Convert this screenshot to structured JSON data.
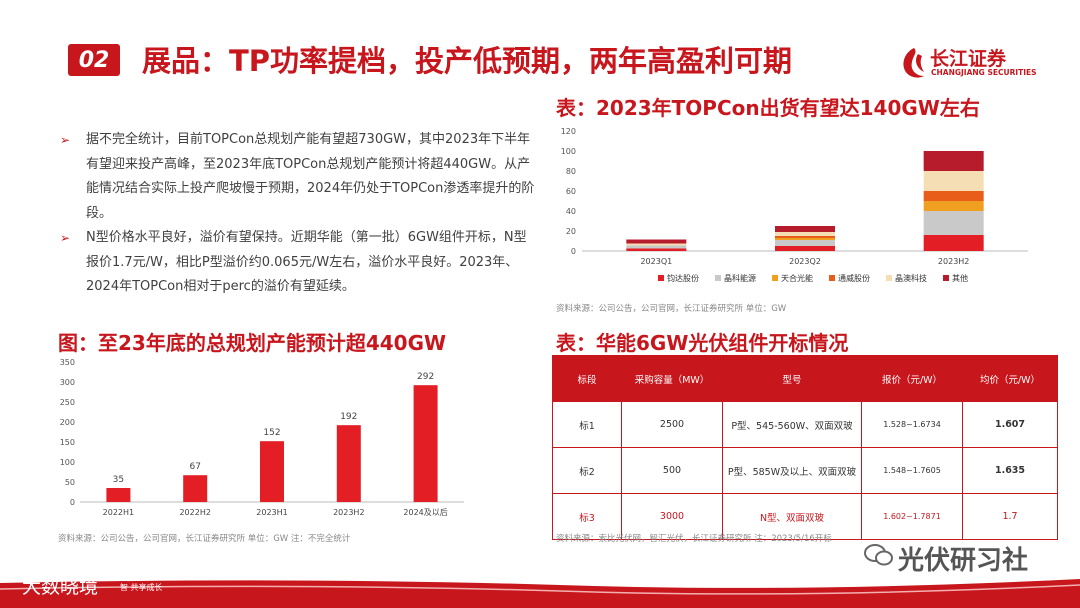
{
  "header": {
    "badge": "02",
    "title": "展品：TP功率提档，投产低预期，两年高盈利可期",
    "logo_cn": "长江证券",
    "logo_en": "CHANGJIANG SECURITIES"
  },
  "bullets": [
    "据不完全统计，目前TOPCon总规划产能有望超730GW，其中2023年下半年有望迎来投产高峰，至2023年底TOPCon总规划产能预计将超440GW。从产能情况结合实际上投产爬坡慢于预期，2024年仍处于TOPCon渗透率提升的阶段。",
    "N型价格水平良好，溢价有望保持。近期华能（第一批）6GW组件开标，N型报价1.7元/W，相比P型溢价约0.065元/W左右，溢价水平良好。2023年、2024年TOPCon相对于perc的溢价有望延续。"
  ],
  "left_chart": {
    "heading": "图：至23年底的总规划产能预计超440GW",
    "source": "资料来源：公司公告，公司官网，长江证券研究所  单位：GW  注：不完全统计",
    "chart_data": {
      "type": "bar",
      "categories": [
        "2022H1",
        "2022H2",
        "2023H1",
        "2023H2",
        "2024及以后"
      ],
      "values": [
        35,
        67,
        152,
        192,
        292
      ],
      "ylim": [
        0,
        350
      ],
      "yticks": [
        0,
        50,
        100,
        150,
        200,
        250,
        300,
        350
      ],
      "color": "#e31e24"
    }
  },
  "right_chart": {
    "heading": "表：2023年TOPCon出货有望达140GW左右",
    "source": "资料来源：公司公告，公司官网，长江证券研究所  单位：GW",
    "chart_data": {
      "type": "bar",
      "stacked": true,
      "categories": [
        "2023Q1",
        "2023Q2",
        "2023H2"
      ],
      "ylim": [
        0,
        120
      ],
      "yticks": [
        0,
        20,
        40,
        60,
        80,
        100,
        120
      ],
      "series": [
        {
          "name": "钧达股份",
          "color": "#e31e24",
          "values": [
            2.5,
            5,
            16
          ]
        },
        {
          "name": "晶科能源",
          "color": "#c9c9c9",
          "values": [
            3,
            6,
            24
          ]
        },
        {
          "name": "天合光能",
          "color": "#f0a020",
          "values": [
            0,
            2,
            10
          ]
        },
        {
          "name": "通威股份",
          "color": "#e85d1a",
          "values": [
            0,
            2,
            10
          ]
        },
        {
          "name": "晶澳科技",
          "color": "#f5deb3",
          "values": [
            2,
            4,
            20
          ]
        },
        {
          "name": "其他",
          "color": "#b71c2c",
          "values": [
            4,
            6,
            20
          ]
        }
      ]
    }
  },
  "table": {
    "heading": "表：华能6GW光伏组件开标情况",
    "source": "资料来源：索比光伏网，智汇光伏，长江证券研究所  注：2023/5/16开标",
    "headers": [
      "标段",
      "采购容量（MW）",
      "型号",
      "报价（元/W）",
      "均价（元/W）"
    ],
    "rows": [
      [
        "标1",
        "2500",
        "P型、545-560W、双面双玻",
        "1.528~1.6734",
        "1.607"
      ],
      [
        "标2",
        "500",
        "P型、585W及以上、双面双玻",
        "1.548~1.7605",
        "1.635"
      ],
      [
        "标3",
        "3000",
        "N型、双面双玻",
        "1.602~1.7871",
        "1.7"
      ]
    ]
  },
  "footer": {
    "left_text": "大数晓境",
    "tagline": "智    共享成长",
    "watermark": "光伏研习社"
  }
}
